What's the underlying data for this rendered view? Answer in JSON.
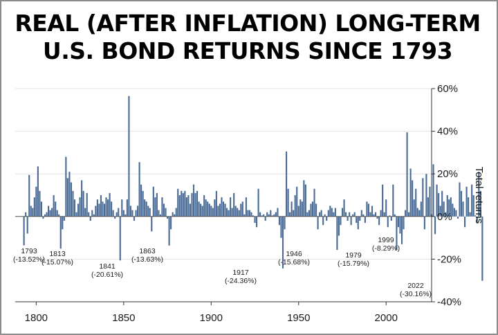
{
  "chart_data": {
    "type": "bar",
    "title": "REAL (AFTER INFLATION) LONG-TERM U.S. BOND RETURNS SINCE 1793",
    "title_lines": [
      "REAL (AFTER INFLATION) LONG-TERM",
      "U.S. BOND RETURNS SINCE 1793"
    ],
    "ylabel": "Total returns",
    "xlabel": "",
    "ylim": [
      -40,
      60
    ],
    "yticks": [
      60,
      40,
      20,
      0,
      -20,
      -40
    ],
    "ytick_labels": [
      "60%",
      "40%",
      "20%",
      "0%",
      "-20%",
      "-40%"
    ],
    "xlim": [
      1788,
      2026
    ],
    "xticks": [
      1800,
      1850,
      1900,
      1950,
      2000
    ],
    "xtick_labels": [
      "1800",
      "1850",
      "1900",
      "1950",
      "2000"
    ],
    "grid": true,
    "bar_color": "#4a6b96",
    "years_start": 1793,
    "values": [
      -13.52,
      2,
      -8,
      19.5,
      5,
      4,
      9,
      14,
      23.5,
      12,
      7,
      -1,
      1,
      2,
      5,
      3,
      4,
      10,
      7,
      3,
      1,
      -15.07,
      -6,
      -2,
      28,
      18,
      21,
      16,
      12,
      8,
      2,
      6,
      9,
      17,
      12,
      4,
      11,
      2,
      -2,
      3,
      1,
      5,
      8,
      6,
      10,
      7,
      6,
      9,
      8,
      11,
      7,
      3,
      -1,
      2,
      4,
      -20.61,
      8,
      3,
      1,
      8,
      56.5,
      5,
      3,
      -2,
      3,
      5,
      25.5,
      15,
      12,
      8,
      7,
      5,
      4,
      -7,
      14,
      9,
      11,
      3,
      1,
      9,
      6,
      4,
      -1,
      -13.63,
      -6,
      2,
      1,
      4,
      13,
      10,
      12,
      11,
      12,
      9,
      10,
      6,
      11,
      15,
      11,
      12,
      7,
      6,
      5,
      10,
      8,
      7,
      6,
      5,
      4,
      8,
      12,
      5,
      6,
      9,
      7,
      6,
      4,
      3,
      9,
      4,
      11,
      5,
      4,
      3,
      6,
      7,
      1,
      9,
      3,
      3,
      2,
      0.5,
      -3,
      -5,
      13,
      2,
      0.5,
      1,
      -2,
      2,
      1,
      3,
      0.5,
      1,
      2,
      4,
      -4,
      -10,
      -24.36,
      -6,
      30.5,
      13,
      2,
      7,
      3,
      10,
      14,
      5,
      8,
      7,
      17,
      15,
      2,
      3,
      6,
      7,
      13,
      6,
      -6,
      2,
      3,
      -4,
      1,
      -2,
      3,
      5,
      4,
      2,
      4,
      -15.68,
      -9,
      -4,
      4,
      8,
      2,
      -2,
      2,
      -4,
      1,
      2,
      -3,
      -6,
      -2,
      3,
      1,
      -3,
      7,
      6,
      2,
      5,
      1,
      2,
      -1,
      -4,
      3,
      15,
      2,
      8,
      -5,
      0.5,
      -2,
      15,
      1,
      -15.79,
      -5,
      -8,
      -13,
      -6,
      3,
      39.5,
      2,
      22.5,
      17,
      8,
      13,
      4,
      3,
      7,
      18,
      -6,
      20,
      9,
      14,
      1,
      24.5,
      -8.29,
      15,
      11,
      5,
      12,
      7,
      2,
      10,
      8,
      9,
      6,
      4,
      3,
      -1,
      16,
      12,
      7,
      -5,
      14,
      9,
      2,
      15,
      10,
      0.5,
      -3,
      21,
      12,
      -30.16
    ],
    "annotations": [
      {
        "year": "1793",
        "value": "(-13.52%)"
      },
      {
        "year": "1813",
        "value": "(-15.07%)"
      },
      {
        "year": "1841",
        "value": "(-20.61%)"
      },
      {
        "year": "1863",
        "value": "(-13.63%)"
      },
      {
        "year": "1917",
        "value": "(-24.36%)"
      },
      {
        "year": "1946",
        "value": "(-15.68%)"
      },
      {
        "year": "1979",
        "value": "(-15.79%)"
      },
      {
        "year": "1999",
        "value": "(-8.29%)"
      },
      {
        "year": "2022",
        "value": "(-30.16%)"
      }
    ]
  }
}
